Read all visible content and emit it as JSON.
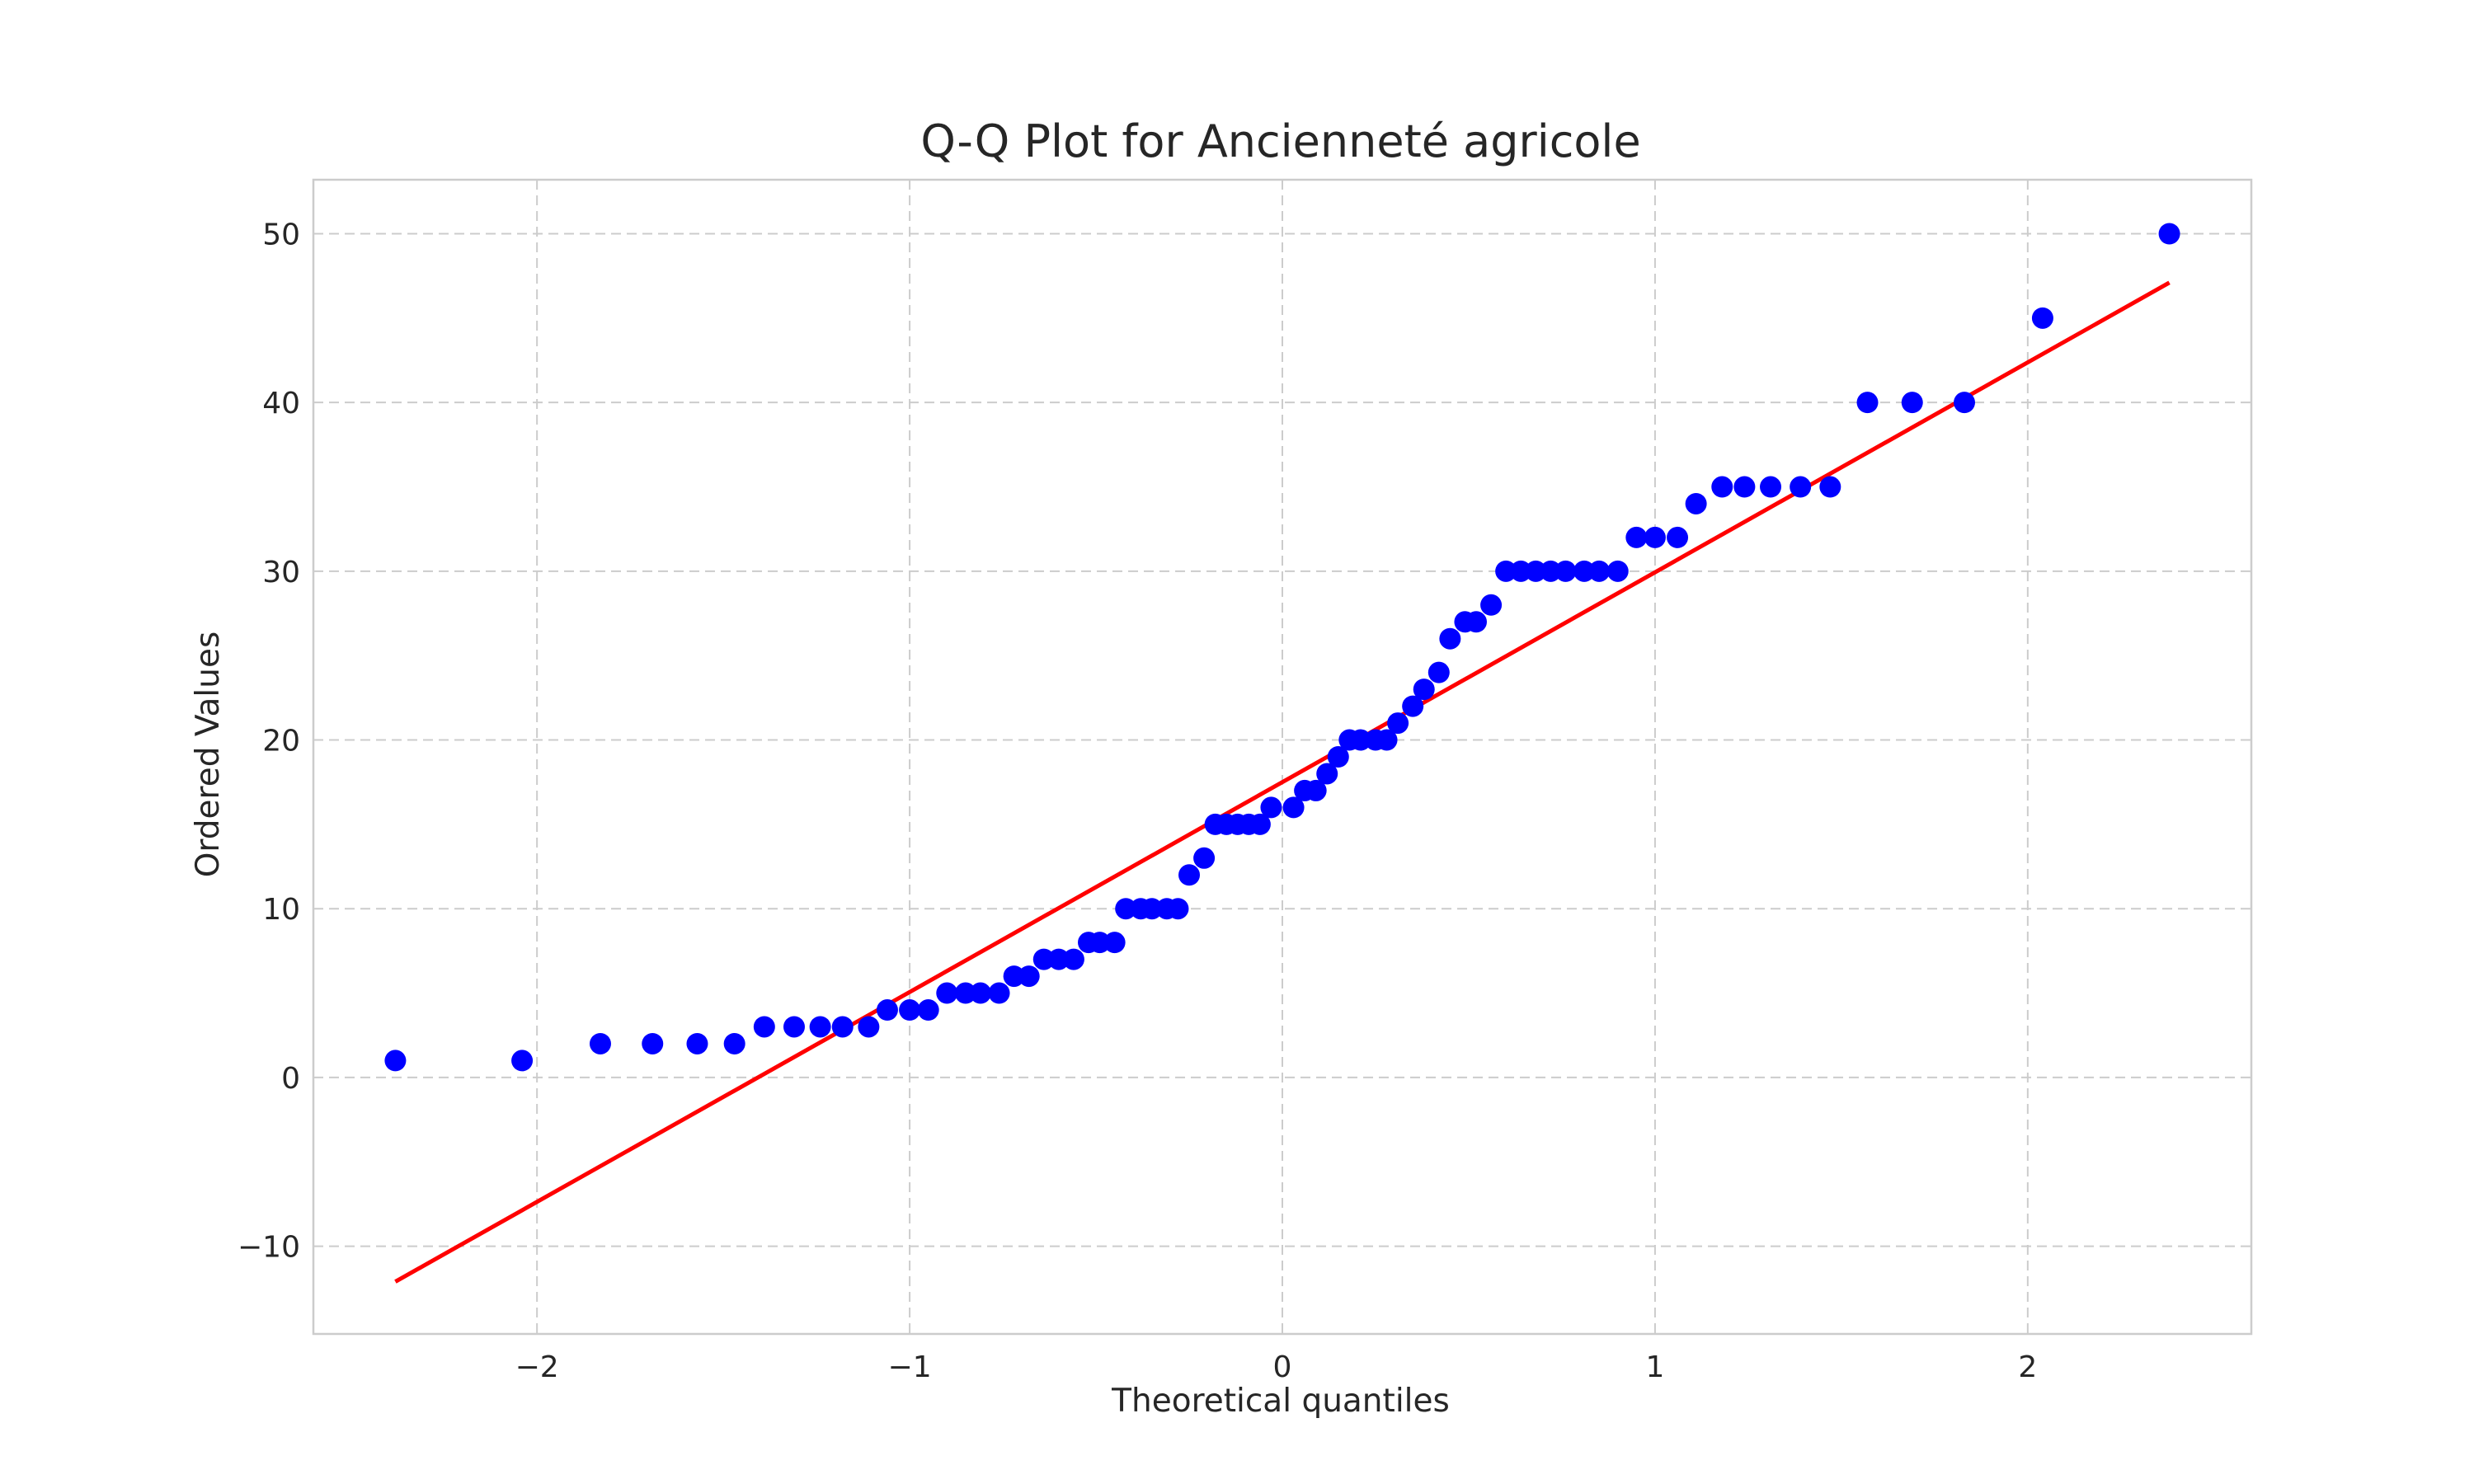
{
  "chart_data": {
    "type": "scatter",
    "title": "Q-Q Plot for Ancienneté agricole",
    "xlabel": "Theoretical quantiles",
    "ylabel": "Ordered Values",
    "xlim": [
      -2.6,
      2.6
    ],
    "ylim": [
      -15.2,
      53.2
    ],
    "xticks": [
      -2,
      -1,
      0,
      1,
      2
    ],
    "xtick_labels": [
      "−2",
      "−1",
      "0",
      "1",
      "2"
    ],
    "yticks": [
      -10,
      0,
      10,
      20,
      30,
      40,
      50
    ],
    "ytick_labels": [
      "−10",
      "0",
      "10",
      "20",
      "30",
      "40",
      "50"
    ],
    "grid": true,
    "points": {
      "x": [
        -2.38,
        -2.04,
        -1.83,
        -1.69,
        -1.57,
        -1.47,
        -1.39,
        -1.31,
        -1.24,
        -1.18,
        -1.11,
        -1.06,
        -1.0,
        -0.95,
        -0.9,
        -0.85,
        -0.81,
        -0.76,
        -0.72,
        -0.68,
        -0.64,
        -0.6,
        -0.56,
        -0.52,
        -0.49,
        -0.45,
        -0.42,
        -0.38,
        -0.35,
        -0.31,
        -0.28,
        -0.25,
        -0.21,
        -0.18,
        -0.15,
        -0.12,
        -0.09,
        -0.06,
        -0.03,
        0.03,
        0.06,
        0.09,
        0.12,
        0.15,
        0.18,
        0.21,
        0.25,
        0.28,
        0.31,
        0.35,
        0.38,
        0.42,
        0.45,
        0.49,
        0.52,
        0.56,
        0.6,
        0.64,
        0.68,
        0.72,
        0.76,
        0.81,
        0.85,
        0.9,
        0.95,
        1.0,
        1.06,
        1.11,
        1.18,
        1.24,
        1.31,
        1.39,
        1.47,
        1.57,
        1.69,
        1.83,
        2.04,
        2.38
      ],
      "y": [
        1,
        1,
        2,
        2,
        2,
        2,
        3,
        3,
        3,
        3,
        3,
        4,
        4,
        4,
        5,
        5,
        5,
        5,
        6,
        6,
        7,
        7,
        7,
        8,
        8,
        8,
        10,
        10,
        10,
        10,
        10,
        12,
        13,
        15,
        15,
        15,
        15,
        15,
        16,
        16,
        17,
        17,
        18,
        19,
        20,
        20,
        20,
        20,
        21,
        22,
        23,
        24,
        26,
        27,
        27,
        28,
        30,
        30,
        30,
        30,
        30,
        30,
        30,
        30,
        32,
        32,
        32,
        34,
        35,
        35,
        35,
        35,
        35,
        40,
        40,
        40,
        45,
        50
      ],
      "color": "#0000ff"
    },
    "fit_line": {
      "x": [
        -2.38,
        2.38
      ],
      "y": [
        -12.1,
        47.1
      ],
      "color": "#ff0000"
    },
    "grid_color": "#cccccc",
    "frame_color": "#cccccc"
  }
}
